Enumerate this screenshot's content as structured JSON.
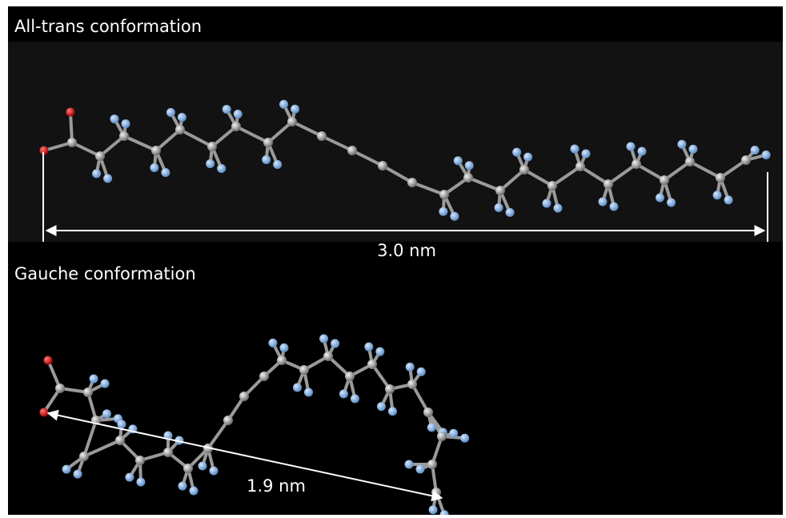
{
  "panels": [
    {
      "title": "All-trans conformation",
      "measurement": "3.0 nm"
    },
    {
      "title": "Gauche conformation",
      "measurement": "1.9 nm"
    }
  ]
}
